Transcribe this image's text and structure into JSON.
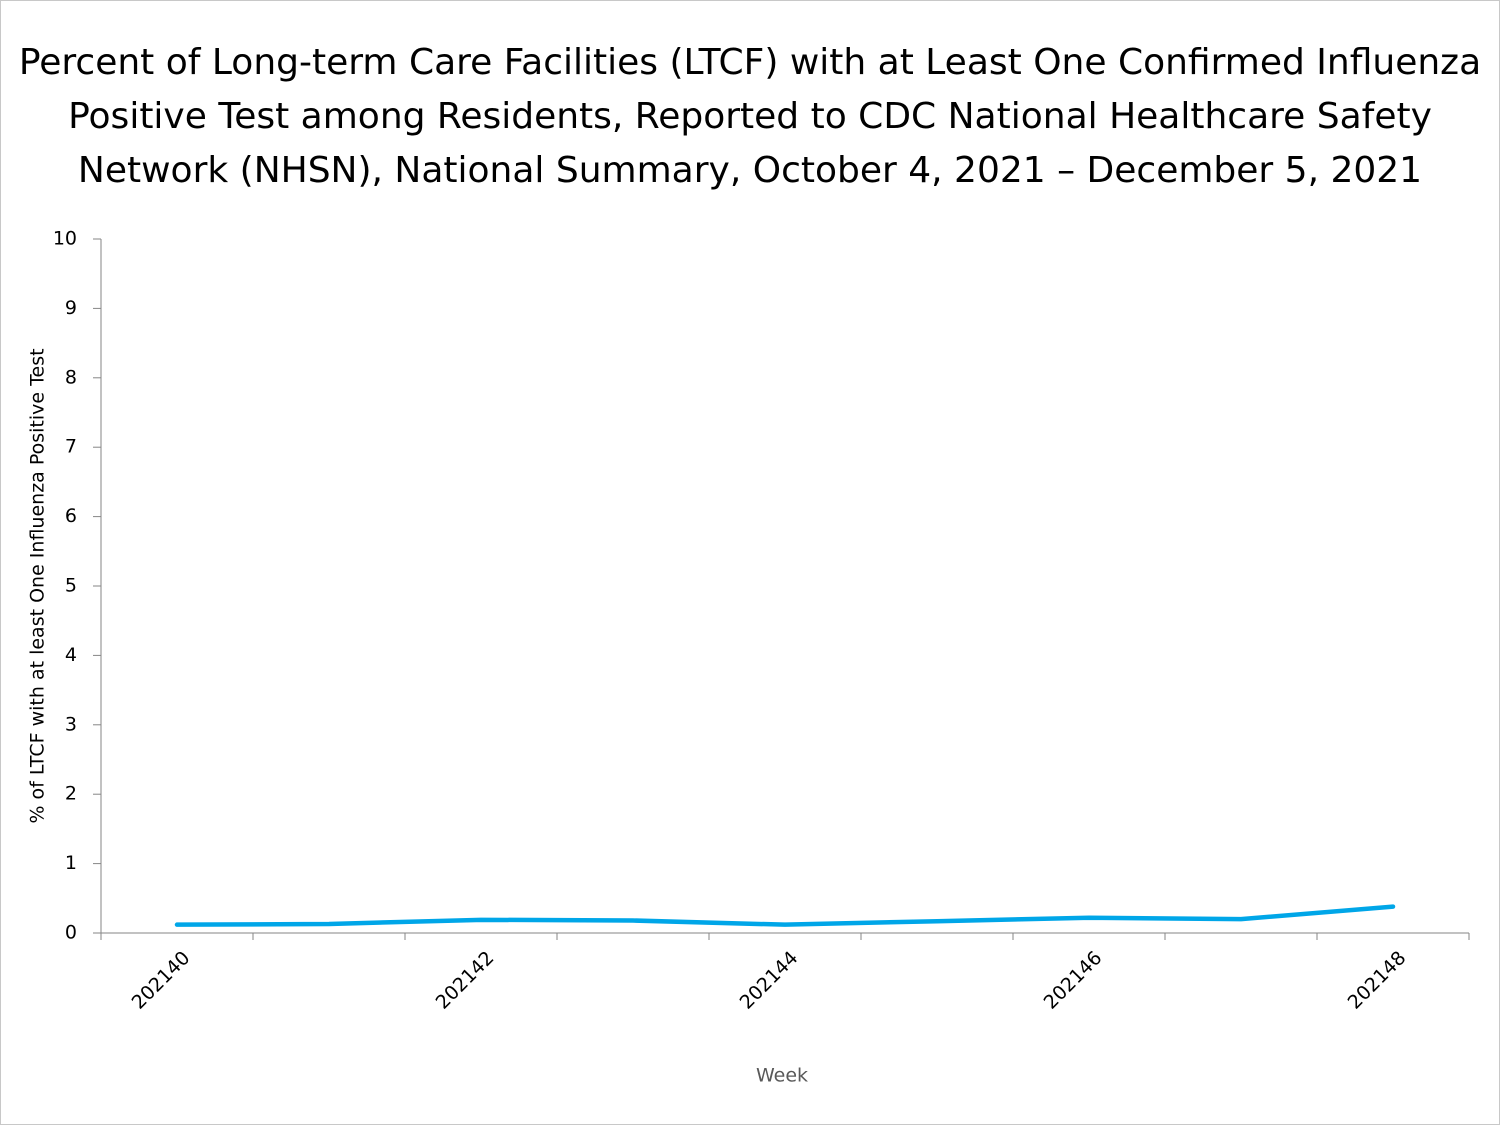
{
  "chart_data": {
    "type": "line",
    "title": [
      "Percent of Long-term Care Facilities (LTCF) with at Least One Confirmed Influenza",
      "Positive Test among Residents, Reported to CDC National Healthcare Safety",
      "Network (NHSN), National Summary, October 4, 2021 – December 5, 2021"
    ],
    "x_label": "Week",
    "y_label": "% of LTCF with at least One Influenza Positive Test",
    "categories": [
      "202140",
      null,
      "202142",
      null,
      "202144",
      null,
      "202146",
      null,
      "202148"
    ],
    "values": [
      0.12,
      0.13,
      0.19,
      0.18,
      0.12,
      0.17,
      0.22,
      0.2,
      0.38
    ],
    "color": "#00a6e8",
    "ylim": [
      0,
      10
    ],
    "yticks": [
      0,
      1,
      2,
      3,
      4,
      5,
      6,
      7,
      8,
      9,
      10
    ],
    "grid": false
  }
}
